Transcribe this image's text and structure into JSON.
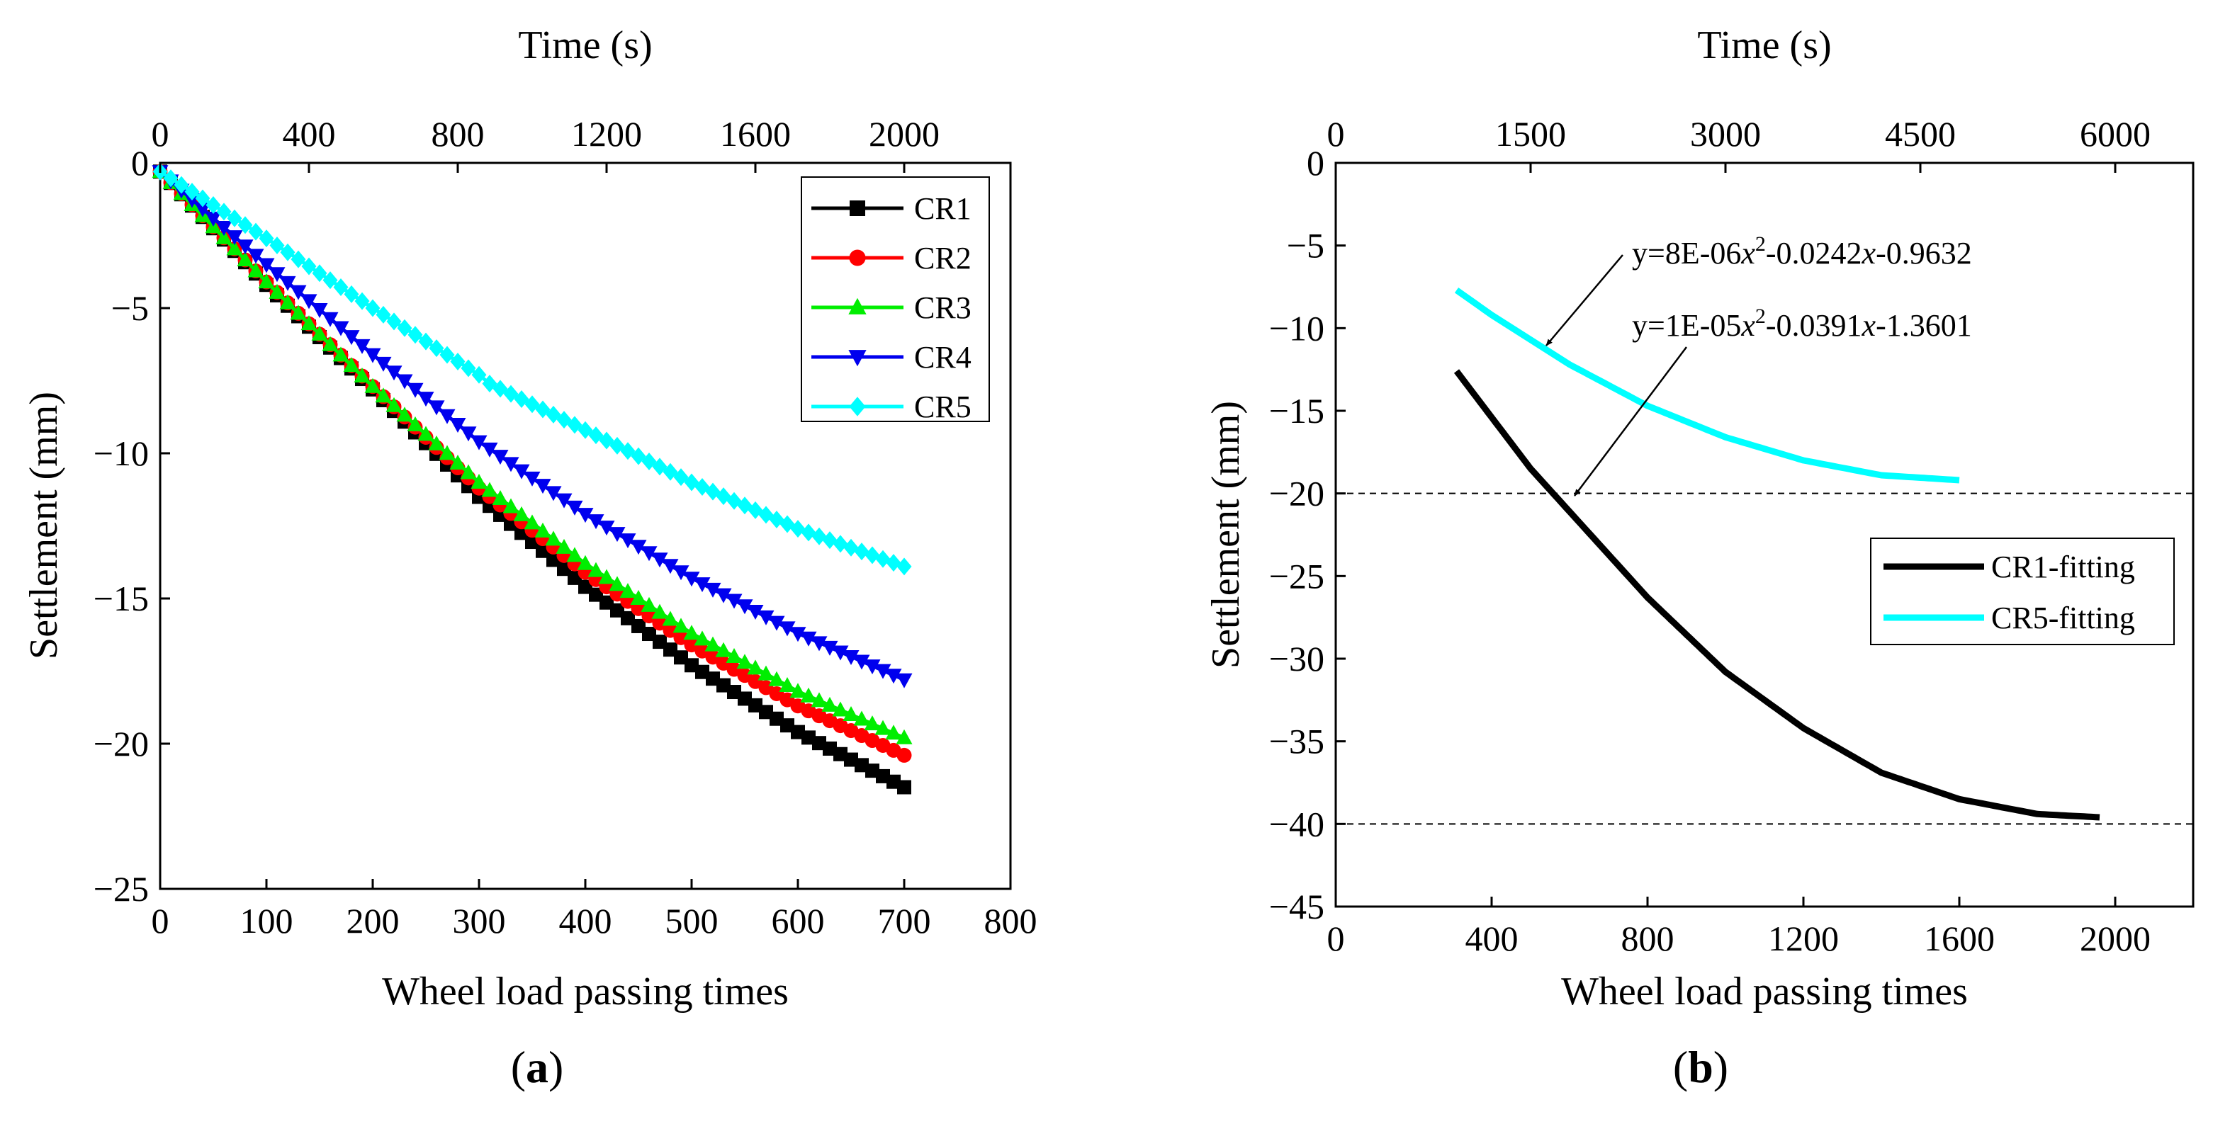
{
  "figure": {
    "panel_a_label": "a",
    "panel_b_label": "b"
  },
  "chart_data": [
    {
      "type": "scatter",
      "panel": "a",
      "title": "",
      "xlabel": "Wheel load passing times",
      "ylabel": "Settlement (mm)",
      "top_xlabel": "Time (s)",
      "xlim": [
        0,
        800
      ],
      "ylim": [
        -25,
        0
      ],
      "top_xlim": [
        0,
        2285.7
      ],
      "xticks": [
        0,
        100,
        200,
        300,
        400,
        500,
        600,
        700,
        800
      ],
      "yticks": [
        0,
        -5,
        -10,
        -15,
        -20,
        -25
      ],
      "yticklabels": [
        "0",
        "−5",
        "−10",
        "−15",
        "−20",
        "−25"
      ],
      "top_xticks": [
        0,
        400,
        800,
        1200,
        1600,
        2000
      ],
      "grid": false,
      "legend_position": "top-right",
      "series": [
        {
          "name": "CR1",
          "color": "#000000",
          "marker": "square",
          "points": [
            [
              0,
              -0.3
            ],
            [
              100,
              -4.2
            ],
            [
              200,
              -7.8
            ],
            [
              300,
              -11.5
            ],
            [
              400,
              -14.6
            ],
            [
              500,
              -17.3
            ],
            [
              600,
              -19.6
            ],
            [
              700,
              -21.5
            ]
          ]
        },
        {
          "name": "CR2",
          "color": "#ff0000",
          "marker": "circle",
          "points": [
            [
              0,
              -0.3
            ],
            [
              100,
              -4.1
            ],
            [
              200,
              -7.7
            ],
            [
              300,
              -11.2
            ],
            [
              400,
              -14.1
            ],
            [
              500,
              -16.6
            ],
            [
              600,
              -18.7
            ],
            [
              700,
              -20.4
            ]
          ]
        },
        {
          "name": "CR3",
          "color": "#00ee00",
          "marker": "triangle-up",
          "points": [
            [
              0,
              -0.3
            ],
            [
              100,
              -4.1
            ],
            [
              200,
              -7.7
            ],
            [
              300,
              -11.0
            ],
            [
              400,
              -13.8
            ],
            [
              500,
              -16.2
            ],
            [
              600,
              -18.2
            ],
            [
              700,
              -19.8
            ]
          ]
        },
        {
          "name": "CR4",
          "color": "#0000ee",
          "marker": "triangle-down",
          "points": [
            [
              0,
              -0.3
            ],
            [
              100,
              -3.5
            ],
            [
              200,
              -6.6
            ],
            [
              300,
              -9.6
            ],
            [
              400,
              -12.1
            ],
            [
              500,
              -14.3
            ],
            [
              600,
              -16.2
            ],
            [
              700,
              -17.8
            ]
          ]
        },
        {
          "name": "CR5",
          "color": "#00ffff",
          "marker": "diamond",
          "points": [
            [
              0,
              -0.3
            ],
            [
              100,
              -2.6
            ],
            [
              200,
              -5.0
            ],
            [
              300,
              -7.3
            ],
            [
              310,
              -7.6
            ],
            [
              400,
              -9.2
            ],
            [
              500,
              -11.0
            ],
            [
              600,
              -12.6
            ],
            [
              700,
              -13.9
            ]
          ]
        }
      ]
    },
    {
      "type": "line",
      "panel": "b",
      "title": "",
      "xlabel": "Wheel load passing times",
      "ylabel": "Settlement (mm)",
      "top_xlabel": "Time (s)",
      "xlim": [
        0,
        2200
      ],
      "ylim": [
        -45,
        0
      ],
      "top_xlim": [
        0,
        6600
      ],
      "xticks": [
        0,
        400,
        800,
        1200,
        1600,
        2000
      ],
      "yticks": [
        0,
        -5,
        -10,
        -15,
        -20,
        -25,
        -30,
        -35,
        -40,
        -45
      ],
      "yticklabels": [
        "0",
        "−5",
        "−10",
        "−15",
        "−20",
        "−25",
        "−30",
        "−35",
        "−40",
        "−45"
      ],
      "top_xticks": [
        0,
        1500,
        3000,
        4500,
        6000
      ],
      "grid": false,
      "legend_position": "center-right",
      "reference_lines": [
        -20,
        -40
      ],
      "series": [
        {
          "name": "CR1-fitting",
          "color": "#000000",
          "x_start": 310,
          "x_end": 1960,
          "points": [
            [
              310,
              -12.6
            ],
            [
              500,
              -18.5
            ],
            [
              800,
              -26.3
            ],
            [
              1000,
              -30.8
            ],
            [
              1200,
              -34.2
            ],
            [
              1400,
              -36.9
            ],
            [
              1600,
              -38.5
            ],
            [
              1800,
              -39.4
            ],
            [
              1960,
              -39.6
            ]
          ]
        },
        {
          "name": "CR5-fitting",
          "color": "#00ffff",
          "x_start": 310,
          "x_end": 1600,
          "points": [
            [
              310,
              -7.7
            ],
            [
              400,
              -9.2
            ],
            [
              600,
              -12.2
            ],
            [
              800,
              -14.7
            ],
            [
              1000,
              -16.6
            ],
            [
              1200,
              -18.0
            ],
            [
              1400,
              -18.9
            ],
            [
              1600,
              -19.2
            ]
          ]
        }
      ],
      "annotations": [
        {
          "text_parts": [
            "y=8E-06",
            "x",
            "2",
            "-0.0242",
            "x",
            "-0.9632"
          ],
          "target": "CR5-fitting"
        },
        {
          "text_parts": [
            "y=1E-05",
            "x",
            "2",
            "-0.0391",
            "x",
            "-1.3601"
          ],
          "target": "CR1-fitting"
        }
      ]
    }
  ]
}
